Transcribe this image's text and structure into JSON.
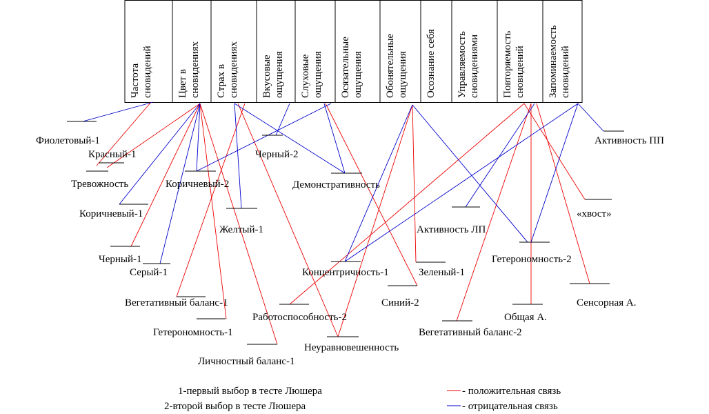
{
  "header": {
    "columns": [
      [
        "Частота",
        "сновидений"
      ],
      [
        "Цвет в",
        "сновидениях"
      ],
      [
        "Страх в",
        "сновидениях"
      ],
      [
        "Вкусовые",
        "ощущения"
      ],
      [
        "Слуховые",
        "ощущения"
      ],
      [
        "Осязательные",
        "ощущения"
      ],
      [
        "Обонятельные",
        "ощущения"
      ],
      [
        "Осознание себя"
      ],
      [
        "Управляемость",
        "сновидениями"
      ],
      [
        "Повторяемость",
        "сновидений"
      ],
      [
        "Запоминаемость",
        "сновидений"
      ]
    ]
  },
  "nodes": [
    {
      "label": "Фиолетовый-1"
    },
    {
      "label": "Красный-1"
    },
    {
      "label": "Тревожность"
    },
    {
      "label": "Коричневый-1"
    },
    {
      "label": "Черный-1"
    },
    {
      "label": "Серый-1"
    },
    {
      "label": "Вегетативный баланс-1"
    },
    {
      "label": "Гетерономность-1"
    },
    {
      "label": "Личностный баланс-1"
    },
    {
      "label": "Коричневый-2"
    },
    {
      "label": "Желтый-1"
    },
    {
      "label": "Черный-2"
    },
    {
      "label": "Демонстративность"
    },
    {
      "label": "Работоспособность-2"
    },
    {
      "label": "Концентричность-1"
    },
    {
      "label": "Неуравновешенность"
    },
    {
      "label": "Синий-2"
    },
    {
      "label": "Зеленый-1"
    },
    {
      "label": "Активность  ЛП"
    },
    {
      "label": "Вегетативный баланс-2"
    },
    {
      "label": "Гетерономность-2"
    },
    {
      "label": "Общая А."
    },
    {
      "label": "«хвост»"
    },
    {
      "label": "Сенсорная А."
    },
    {
      "label": "Активность ПП"
    }
  ],
  "legend": {
    "notes": [
      "1-первый выбор в тесте Люшера",
      "2-второй выбор в тесте Люшера"
    ],
    "positive": "- положительная связь",
    "negative": "- отрицательная связь"
  }
}
